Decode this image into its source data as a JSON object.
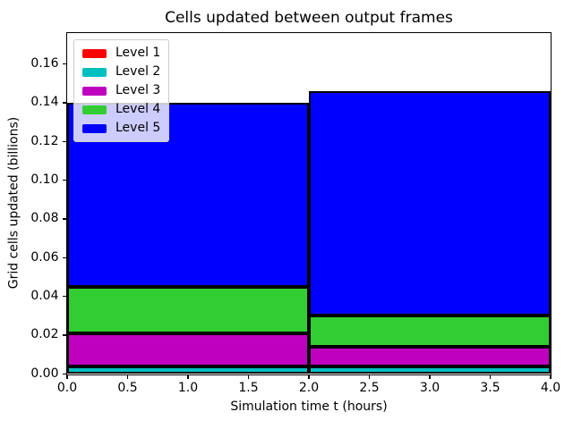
{
  "chart_data": {
    "type": "bar",
    "stacked": true,
    "title": "Cells updated between output frames",
    "xlabel": "Simulation time t (hours)",
    "ylabel": "Grid cells updated (billions)",
    "xlim": [
      0,
      4
    ],
    "ylim": [
      0,
      0.176
    ],
    "grid": false,
    "background_color": "#ffffff",
    "edge_color": "#000000",
    "x_edges": [
      0,
      2,
      4
    ],
    "bar_intervals": [
      "t = 0 to 2 hours",
      "t = 2 to 4 hours"
    ],
    "x_ticks": [
      0.0,
      0.5,
      1.0,
      1.5,
      2.0,
      2.5,
      3.0,
      3.5,
      4.0
    ],
    "x_tick_labels": [
      "0.0",
      "0.5",
      "1.0",
      "1.5",
      "2.0",
      "2.5",
      "3.0",
      "3.5",
      "4.0"
    ],
    "y_ticks": [
      0.0,
      0.02,
      0.04,
      0.06,
      0.08,
      0.1,
      0.12,
      0.14,
      0.16
    ],
    "y_tick_labels": [
      "0.00",
      "0.02",
      "0.04",
      "0.06",
      "0.08",
      "0.10",
      "0.12",
      "0.14",
      "0.16"
    ],
    "series": [
      {
        "name": "Level 1",
        "color": "#ff0000",
        "values": [
          0.0,
          0.0
        ]
      },
      {
        "name": "Level 2",
        "color": "#00bfbf",
        "values": [
          0.004,
          0.004
        ]
      },
      {
        "name": "Level 3",
        "color": "#bf00bf",
        "values": [
          0.017,
          0.01
        ]
      },
      {
        "name": "Level 4",
        "color": "#32cd32",
        "values": [
          0.024,
          0.016
        ]
      },
      {
        "name": "Level 5",
        "color": "#0000ff",
        "values": [
          0.095,
          0.116
        ]
      }
    ],
    "bar_totals": [
      0.14,
      0.146
    ],
    "cumulative_tops": {
      "bar1": [
        0.0,
        0.004,
        0.021,
        0.045,
        0.14
      ],
      "bar2": [
        0.0,
        0.004,
        0.014,
        0.03,
        0.146
      ]
    },
    "legend": {
      "position": "upper left",
      "entries": [
        {
          "label": "Level 1",
          "color": "#ff0000"
        },
        {
          "label": "Level 2",
          "color": "#00bfbf"
        },
        {
          "label": "Level 3",
          "color": "#bf00bf"
        },
        {
          "label": "Level 4",
          "color": "#32cd32"
        },
        {
          "label": "Level 5",
          "color": "#0000ff"
        }
      ]
    }
  }
}
